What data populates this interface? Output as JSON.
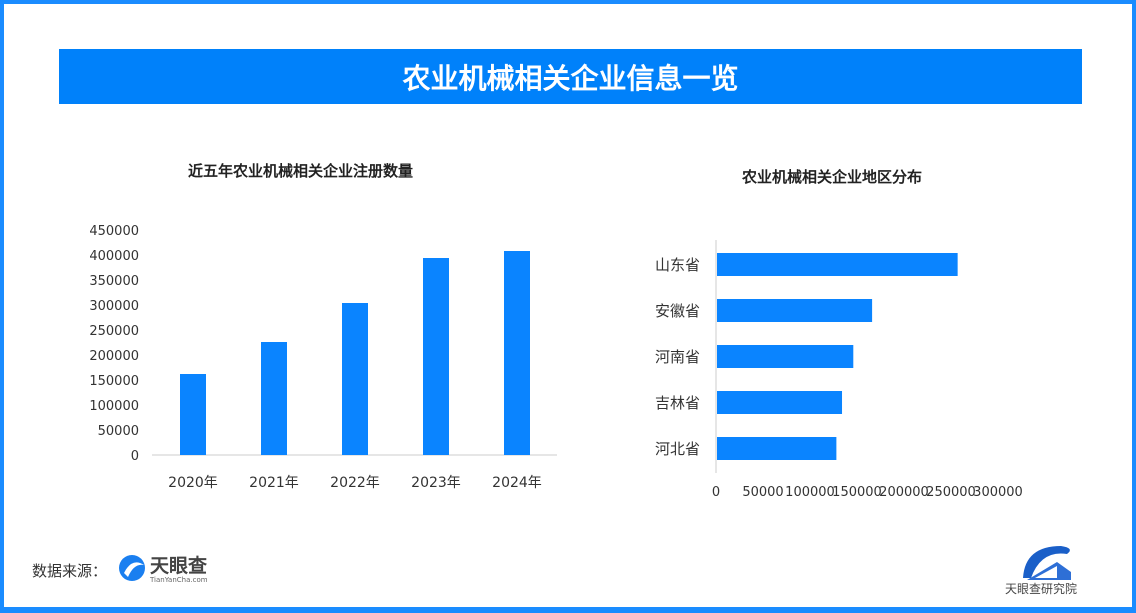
{
  "header": {
    "title": "农业机械相关企业信息一览"
  },
  "footer": {
    "source_label": "数据来源：",
    "source_logo": "天眼查",
    "source_logo_sub": "TianYanCha.com",
    "institute_logo": "天眼查研究院"
  },
  "colors": {
    "accent": "#0081fa",
    "bar": "#0a84ff"
  },
  "chart_data": [
    {
      "type": "bar",
      "title": "近五年农业机械相关企业注册数量",
      "categories": [
        "2020年",
        "2021年",
        "2022年",
        "2023年",
        "2024年"
      ],
      "values": [
        162000,
        226000,
        304000,
        394000,
        408000
      ],
      "ylim": [
        0,
        450000
      ],
      "yticks": [
        "0",
        "50000",
        "100000",
        "150000",
        "200000",
        "250000",
        "300000",
        "350000",
        "400000",
        "450000"
      ],
      "xlabel": "",
      "ylabel": "",
      "grid": false
    },
    {
      "type": "bar",
      "orientation": "horizontal",
      "title": "农业机械相关企业地区分布",
      "categories": [
        "山东省",
        "安徽省",
        "河南省",
        "吉林省",
        "河北省"
      ],
      "values": [
        256000,
        165000,
        145000,
        133000,
        127000
      ],
      "xlim": [
        0,
        300000
      ],
      "xticks": [
        "0",
        "50000",
        "100000",
        "150000",
        "200000",
        "250000",
        "300000"
      ],
      "xlabel": "",
      "ylabel": "",
      "grid": false
    }
  ]
}
